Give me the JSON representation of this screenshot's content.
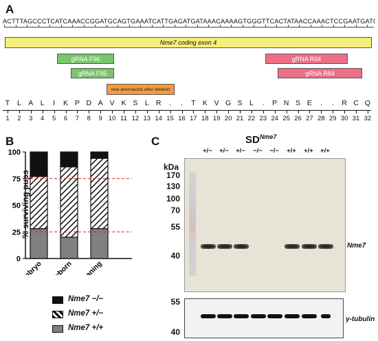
{
  "panelA": {
    "letter": "A",
    "sequence": "ACTTTAGCCCTCATCAAACCGGATGCAGTGAAATCATTGAGATGATAAACAAAAGTGGGTTCACTATAACCAAACTCCGAATGATGACGCTGTCAAG",
    "exon_label": "Nme7 coding exon 4",
    "grna_f96": "gRNA F96",
    "grna_f95": "gRNA F95",
    "grna_r94": "gRNA R94",
    "grna_r84": "gRNA R84",
    "deletion_label": "new aminoacids after deletion",
    "amino_acids": [
      "T",
      "L",
      "A",
      "L",
      "I",
      "K",
      "P",
      "D",
      "A",
      "V",
      "K",
      "S",
      "L",
      "R",
      ".",
      ".",
      "T",
      "K",
      "V",
      "G",
      "S",
      "L",
      ".",
      "P",
      "N",
      "S",
      "E",
      ".",
      ".",
      "R",
      "C",
      "Q"
    ],
    "positions": [
      "1",
      "2",
      "3",
      "4",
      "5",
      "6",
      "7",
      "8",
      "9",
      "10",
      "11",
      "12",
      "13",
      "14",
      "15",
      "16",
      "17",
      "18",
      "19",
      "20",
      "21",
      "22",
      "23",
      "24",
      "25",
      "26",
      "27",
      "28",
      "29",
      "30",
      "31",
      "32"
    ]
  },
  "panelB": {
    "letter": "B",
    "ylabel": "% surviving pups",
    "yticks": [
      "100",
      "75",
      "50",
      "25",
      "0"
    ],
    "legend": [
      "Nme7 −/−",
      "Nme7 +/−",
      "Nme7 +/+"
    ]
  },
  "panelC": {
    "letter": "C",
    "title": "SD",
    "title_sup": "Nme7",
    "lanes": [
      "+/−",
      "+/−",
      "+/−",
      "−/−",
      "−/−",
      "+/+",
      "+/+",
      "+/+"
    ],
    "kda_label": "kDa",
    "markers": [
      "170",
      "130",
      "100",
      "70",
      "55",
      "40"
    ],
    "band_label": "Nme7",
    "tubulin_markers": [
      "55",
      "40"
    ],
    "tubulin_label": "γ-tubulin"
  },
  "chart_data": {
    "type": "bar",
    "categories": [
      "Embryo",
      "Newborn",
      "Weaning"
    ],
    "series": [
      {
        "name": "Nme7 +/+",
        "values": [
          28,
          20,
          28
        ]
      },
      {
        "name": "Nme7 +/−",
        "values": [
          49,
          66,
          66
        ]
      },
      {
        "name": "Nme7 −/−",
        "values": [
          23,
          14,
          6
        ]
      }
    ],
    "stacked": true,
    "ylabel": "% surviving pups",
    "ylim": [
      0,
      100
    ],
    "yticks": [
      0,
      25,
      50,
      75,
      100
    ],
    "reference_lines": [
      25,
      75
    ],
    "colors": {
      "Nme7 +/+": "#808080",
      "Nme7 +/−": "hatched",
      "Nme7 −/−": "#111111"
    }
  }
}
